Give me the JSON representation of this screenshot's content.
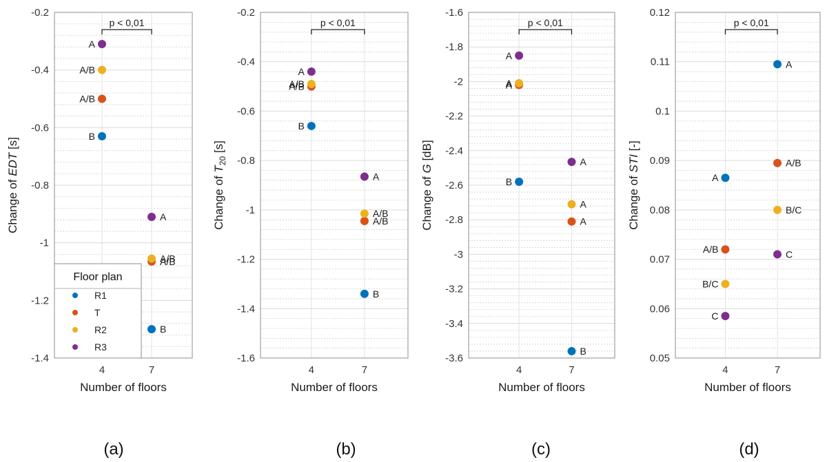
{
  "figure": {
    "panel_labels": [
      "(a)",
      "(b)",
      "(c)",
      "(d)"
    ]
  },
  "legend": {
    "title": "Floor plan",
    "items": [
      {
        "name": "R1",
        "color": "#0072BD"
      },
      {
        "name": "T",
        "color": "#D95319"
      },
      {
        "name": "R2",
        "color": "#EDB120"
      },
      {
        "name": "R3",
        "color": "#7E2F8E"
      }
    ]
  },
  "chart_data": [
    {
      "type": "scatter",
      "panel": "(a)",
      "xlabel": "Number of floors",
      "ylabel_pre": "Change of ",
      "ylabel_var": "EDT",
      "ylabel_sub": "",
      "ylabel_post": " [s]",
      "categories": [
        "4",
        "7"
      ],
      "ylim": [
        -1.4,
        -0.2
      ],
      "yticks": [
        -0.2,
        -0.4,
        -0.6,
        -0.8,
        -1,
        -1.2,
        -1.4
      ],
      "ytick_labels": [
        "-0.2",
        "-0.4",
        "-0.6",
        "-0.8",
        "-1",
        "-1.2",
        "-1.4"
      ],
      "significance": "p < 0,01",
      "series": [
        {
          "name": "R1",
          "values": [
            -0.63,
            -1.3
          ],
          "labels": [
            "B",
            "B"
          ]
        },
        {
          "name": "T",
          "values": [
            -0.5,
            -1.065
          ],
          "labels": [
            "A/B",
            "A/B"
          ]
        },
        {
          "name": "R2",
          "values": [
            -0.4,
            -1.055
          ],
          "labels": [
            "A/B",
            "A/B"
          ]
        },
        {
          "name": "R3",
          "values": [
            -0.31,
            -0.91
          ],
          "labels": [
            "A",
            "A"
          ]
        }
      ]
    },
    {
      "type": "scatter",
      "panel": "(b)",
      "xlabel": "Number of floors",
      "ylabel_pre": "Change of ",
      "ylabel_var": "T",
      "ylabel_sub": "20",
      "ylabel_post": " [s]",
      "categories": [
        "4",
        "7"
      ],
      "ylim": [
        -1.6,
        -0.2
      ],
      "yticks": [
        -0.2,
        -0.4,
        -0.6,
        -0.8,
        -1,
        -1.2,
        -1.4,
        -1.6
      ],
      "ytick_labels": [
        "-0.2",
        "-0.4",
        "-0.6",
        "-0.8",
        "-1",
        "-1.2",
        "-1.4",
        "-1.6"
      ],
      "significance": "p < 0,01",
      "series": [
        {
          "name": "R1",
          "values": [
            -0.66,
            -1.34
          ],
          "labels": [
            "B",
            "B"
          ]
        },
        {
          "name": "T",
          "values": [
            -0.5,
            -1.045
          ],
          "labels": [
            "A/B",
            "A/B"
          ]
        },
        {
          "name": "R2",
          "values": [
            -0.49,
            -1.015
          ],
          "labels": [
            "A/B",
            "A/B"
          ]
        },
        {
          "name": "R3",
          "values": [
            -0.44,
            -0.865
          ],
          "labels": [
            "A",
            "A"
          ]
        }
      ]
    },
    {
      "type": "scatter",
      "panel": "(c)",
      "xlabel": "Number of floors",
      "ylabel_pre": "Change of ",
      "ylabel_var": "G",
      "ylabel_sub": "",
      "ylabel_post": " [dB]",
      "categories": [
        "4",
        "7"
      ],
      "ylim": [
        -3.6,
        -1.6
      ],
      "yticks": [
        -1.6,
        -1.8,
        -2,
        -2.2,
        -2.4,
        -2.6,
        -2.8,
        -3,
        -3.2,
        -3.4,
        -3.6
      ],
      "ytick_labels": [
        "-1.6",
        "-1.8",
        "-2",
        "-2.2",
        "-2.4",
        "-2.6",
        "-2.8",
        "-3",
        "-3.2",
        "-3.4",
        "-3.6"
      ],
      "significance": "p < 0,01",
      "series": [
        {
          "name": "R1",
          "values": [
            -2.58,
            -3.56
          ],
          "labels": [
            "B",
            "B"
          ]
        },
        {
          "name": "T",
          "values": [
            -2.02,
            -2.81
          ],
          "labels": [
            "A",
            "A"
          ]
        },
        {
          "name": "R2",
          "values": [
            -2.01,
            -2.71
          ],
          "labels": [
            "A",
            "A"
          ]
        },
        {
          "name": "R3",
          "values": [
            -1.85,
            -2.465
          ],
          "labels": [
            "A",
            "A"
          ]
        }
      ]
    },
    {
      "type": "scatter",
      "panel": "(d)",
      "xlabel": "Number of floors",
      "ylabel_pre": "Change of ",
      "ylabel_var": "STI",
      "ylabel_sub": "",
      "ylabel_post": " [-]",
      "categories": [
        "4",
        "7"
      ],
      "ylim": [
        0.05,
        0.12
      ],
      "yticks": [
        0.12,
        0.11,
        0.1,
        0.09,
        0.08,
        0.07,
        0.06,
        0.05
      ],
      "ytick_labels": [
        "0.12",
        "0.11",
        "0.1",
        "0.09",
        "0.08",
        "0.07",
        "0.06",
        "0.05"
      ],
      "significance": "p < 0,01",
      "series": [
        {
          "name": "R1",
          "values": [
            0.0865,
            0.1095
          ],
          "labels": [
            "A",
            "A"
          ]
        },
        {
          "name": "T",
          "values": [
            0.072,
            0.0895
          ],
          "labels": [
            "A/B",
            "A/B"
          ]
        },
        {
          "name": "R2",
          "values": [
            0.065,
            0.08
          ],
          "labels": [
            "B/C",
            "B/C"
          ]
        },
        {
          "name": "R3",
          "values": [
            0.0585,
            0.071
          ],
          "labels": [
            "C",
            "C"
          ]
        }
      ]
    }
  ]
}
